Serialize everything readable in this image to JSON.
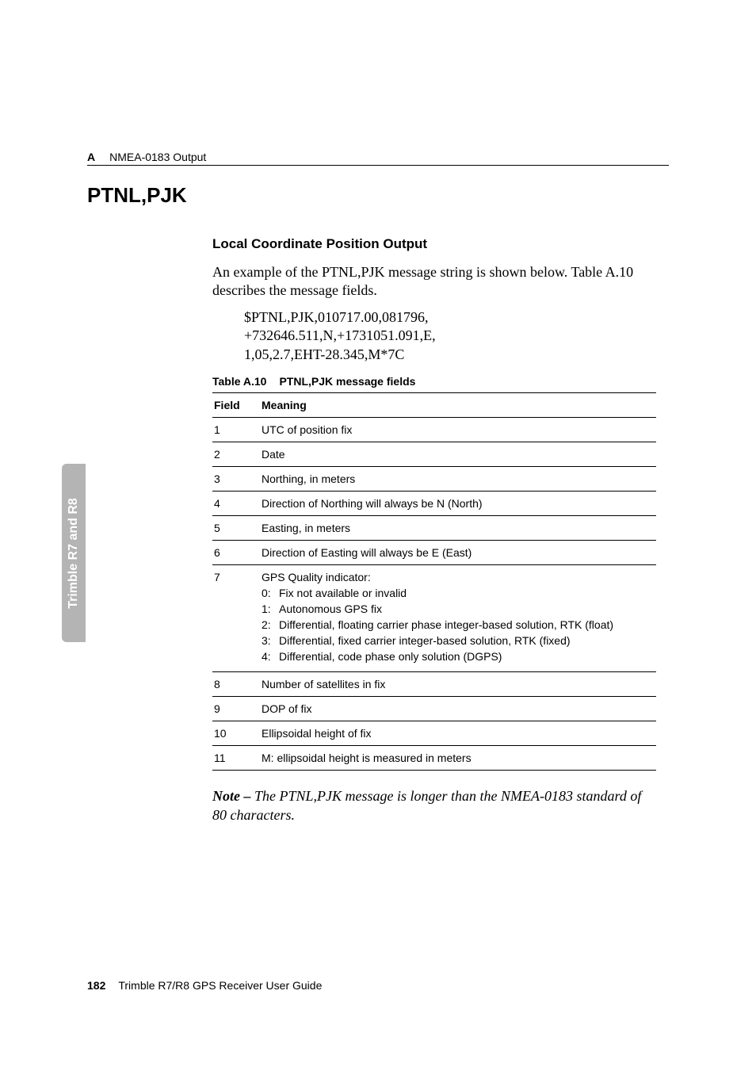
{
  "header": {
    "appendix_letter": "A",
    "appendix_title": "NMEA-0183 Output"
  },
  "side_tab": "Trimble R7 and R8",
  "section_title": "PTNL,PJK",
  "subsection_title": "Local Coordinate Position Output",
  "intro_para": "An example of the PTNL,PJK message string is shown below. Table A.10 describes the message fields.",
  "message_lines": [
    "$PTNL,PJK,010717.00,081796,",
    "+732646.511,N,+1731051.091,E,",
    "1,05,2.7,EHT-28.345,M*7C"
  ],
  "table": {
    "caption_label": "Table A.10",
    "caption_title": "PTNL,PJK message fields",
    "columns": [
      "Field",
      "Meaning"
    ],
    "rows": [
      {
        "field": "1",
        "meaning": "UTC of position fix"
      },
      {
        "field": "2",
        "meaning": "Date"
      },
      {
        "field": "3",
        "meaning": "Northing, in meters"
      },
      {
        "field": "4",
        "meaning": "Direction of Northing will always be N (North)"
      },
      {
        "field": "5",
        "meaning": "Easting, in meters"
      },
      {
        "field": "6",
        "meaning": "Direction of Easting will always be E (East)"
      },
      {
        "field": "7",
        "meaning": "GPS Quality indicator:",
        "sublist": [
          {
            "n": "0:",
            "t": "Fix not available or invalid"
          },
          {
            "n": "1:",
            "t": "Autonomous GPS fix"
          },
          {
            "n": "2:",
            "t": "Differential, floating carrier phase integer-based solution, RTK (float)"
          },
          {
            "n": "3:",
            "t": "Differential, fixed carrier integer-based solution, RTK (fixed)"
          },
          {
            "n": "4:",
            "t": "Differential, code phase only solution (DGPS)"
          }
        ]
      },
      {
        "field": "8",
        "meaning": "Number of satellites in fix"
      },
      {
        "field": "9",
        "meaning": "DOP of fix"
      },
      {
        "field": "10",
        "meaning": "Ellipsoidal height of fix"
      },
      {
        "field": "11",
        "meaning": "M: ellipsoidal height is measured in meters"
      }
    ]
  },
  "note": {
    "label": "Note – ",
    "body": "The PTNL,PJK message is longer than the NMEA-0183 standard of 80 characters."
  },
  "footer": {
    "page_number": "182",
    "doc_title": "Trimble R7/R8 GPS Receiver User Guide"
  }
}
